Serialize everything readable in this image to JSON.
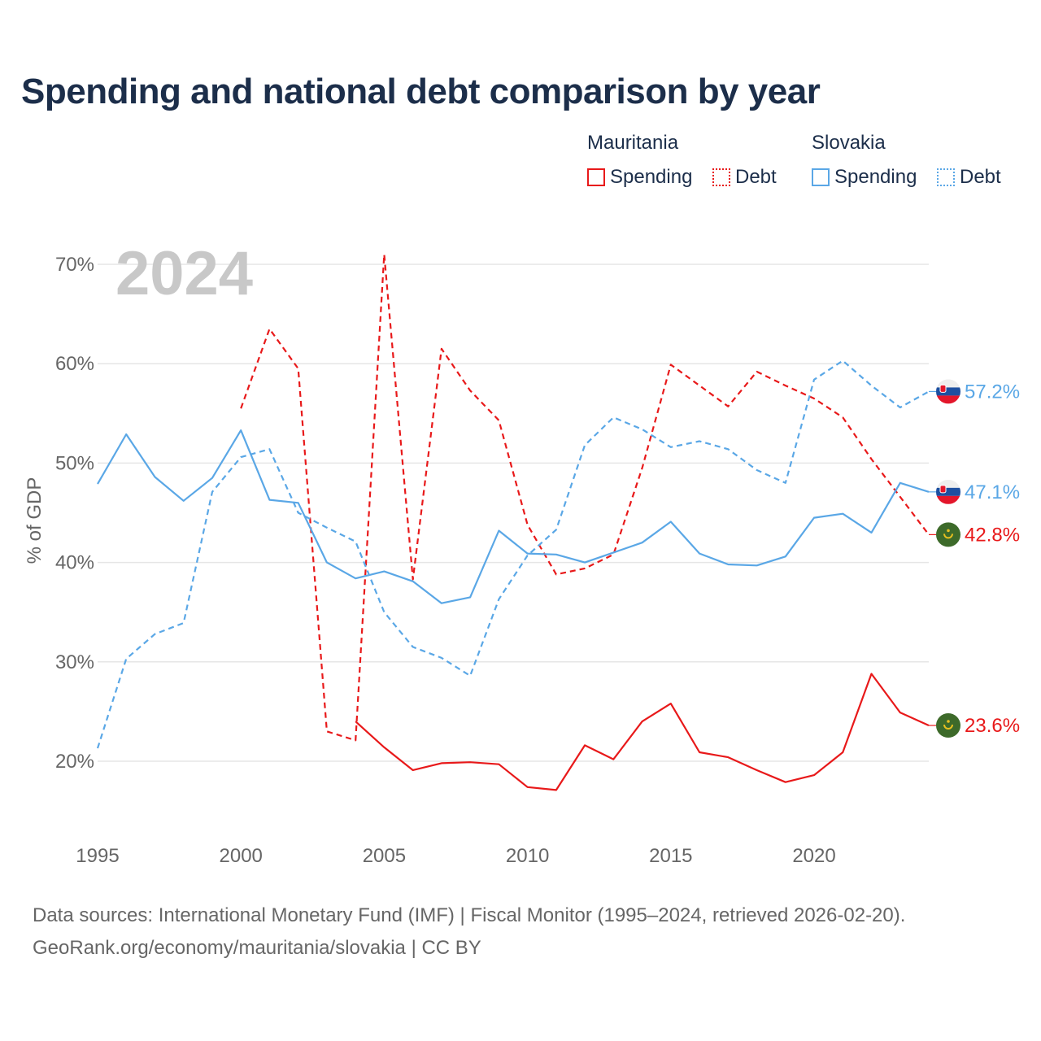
{
  "title": "Spending and national debt comparison by year",
  "legend": {
    "groups": [
      {
        "name": "Mauritania",
        "color": "#e8191a",
        "items": [
          "Spending",
          "Debt"
        ]
      },
      {
        "name": "Slovakia",
        "color": "#5aa7e6",
        "items": [
          "Spending",
          "Debt"
        ]
      }
    ]
  },
  "year_watermark": "2024",
  "footer": {
    "line1": "Data sources: International Monetary Fund (IMF) | Fiscal Monitor (1995–2024, retrieved 2026-02-20).",
    "line2": "GeoRank.org/economy/mauritania/slovakia | CC BY"
  },
  "chart_data": {
    "type": "line",
    "title": "Spending and national debt comparison by year",
    "xlabel": "",
    "ylabel": "% of GDP",
    "xlim": [
      1995,
      2024
    ],
    "ylim": [
      14,
      72
    ],
    "xticks": [
      1995,
      2000,
      2005,
      2010,
      2015,
      2020
    ],
    "yticks": [
      20,
      30,
      40,
      50,
      60,
      70
    ],
    "ytick_labels": [
      "20%",
      "30%",
      "40%",
      "50%",
      "60%",
      "70%"
    ],
    "grid": true,
    "series": [
      {
        "name": "Mauritania Spending",
        "country": "Mauritania",
        "metric": "Spending",
        "color": "#e8191a",
        "dash": "solid",
        "x": [
          2004,
          2005,
          2006,
          2007,
          2008,
          2009,
          2010,
          2011,
          2012,
          2013,
          2014,
          2015,
          2016,
          2017,
          2018,
          2019,
          2020,
          2021,
          2022,
          2023,
          2024
        ],
        "values": [
          24.0,
          21.4,
          19.1,
          19.8,
          19.9,
          19.7,
          17.4,
          17.1,
          21.6,
          20.2,
          24.0,
          25.8,
          20.9,
          20.4,
          19.1,
          17.9,
          18.6,
          20.9,
          28.8,
          24.9,
          23.6
        ],
        "end_label": "23.6%"
      },
      {
        "name": "Mauritania Debt",
        "country": "Mauritania",
        "metric": "Debt",
        "color": "#e8191a",
        "dash": "dashed",
        "x": [
          2000,
          2001,
          2002,
          2003,
          2004,
          2005,
          2006,
          2007,
          2008,
          2009,
          2010,
          2011,
          2012,
          2013,
          2014,
          2015,
          2016,
          2017,
          2018,
          2019,
          2020,
          2021,
          2022,
          2023,
          2024
        ],
        "values": [
          55.5,
          63.5,
          59.5,
          23.0,
          22.1,
          71.0,
          38.3,
          61.5,
          57.3,
          54.3,
          43.8,
          38.8,
          39.4,
          40.8,
          49.5,
          59.9,
          57.8,
          55.7,
          59.2,
          57.8,
          56.5,
          54.6,
          50.4,
          46.6,
          42.8
        ],
        "end_label": "42.8%"
      },
      {
        "name": "Slovakia Spending",
        "country": "Slovakia",
        "metric": "Spending",
        "color": "#5aa7e6",
        "dash": "solid",
        "x": [
          1995,
          1996,
          1997,
          1998,
          1999,
          2000,
          2001,
          2002,
          2003,
          2004,
          2005,
          2006,
          2007,
          2008,
          2009,
          2010,
          2011,
          2012,
          2013,
          2014,
          2015,
          2016,
          2017,
          2018,
          2019,
          2020,
          2021,
          2022,
          2023,
          2024
        ],
        "values": [
          47.9,
          52.9,
          48.6,
          46.2,
          48.5,
          53.3,
          46.3,
          46.0,
          40.0,
          38.4,
          39.1,
          38.1,
          35.9,
          36.5,
          43.2,
          40.9,
          40.8,
          40.0,
          41.0,
          42.0,
          44.1,
          40.9,
          39.8,
          39.7,
          40.6,
          44.5,
          44.9,
          43.0,
          48.0,
          47.1
        ],
        "end_label": "47.1%"
      },
      {
        "name": "Slovakia Debt",
        "country": "Slovakia",
        "metric": "Debt",
        "color": "#5aa7e6",
        "dash": "dashed",
        "x": [
          1995,
          1996,
          1997,
          1998,
          1999,
          2000,
          2001,
          2002,
          2003,
          2004,
          2005,
          2006,
          2007,
          2008,
          2009,
          2010,
          2011,
          2012,
          2013,
          2014,
          2015,
          2016,
          2017,
          2018,
          2019,
          2020,
          2021,
          2022,
          2023,
          2024
        ],
        "values": [
          21.3,
          30.3,
          32.8,
          33.9,
          47.1,
          50.6,
          51.4,
          45.0,
          43.5,
          42.1,
          35.0,
          31.5,
          30.4,
          28.6,
          36.3,
          40.7,
          43.3,
          51.8,
          54.6,
          53.4,
          51.6,
          52.2,
          51.4,
          49.3,
          48.0,
          58.4,
          60.3,
          57.8,
          55.6,
          57.2
        ],
        "end_label": "57.2%"
      }
    ]
  }
}
